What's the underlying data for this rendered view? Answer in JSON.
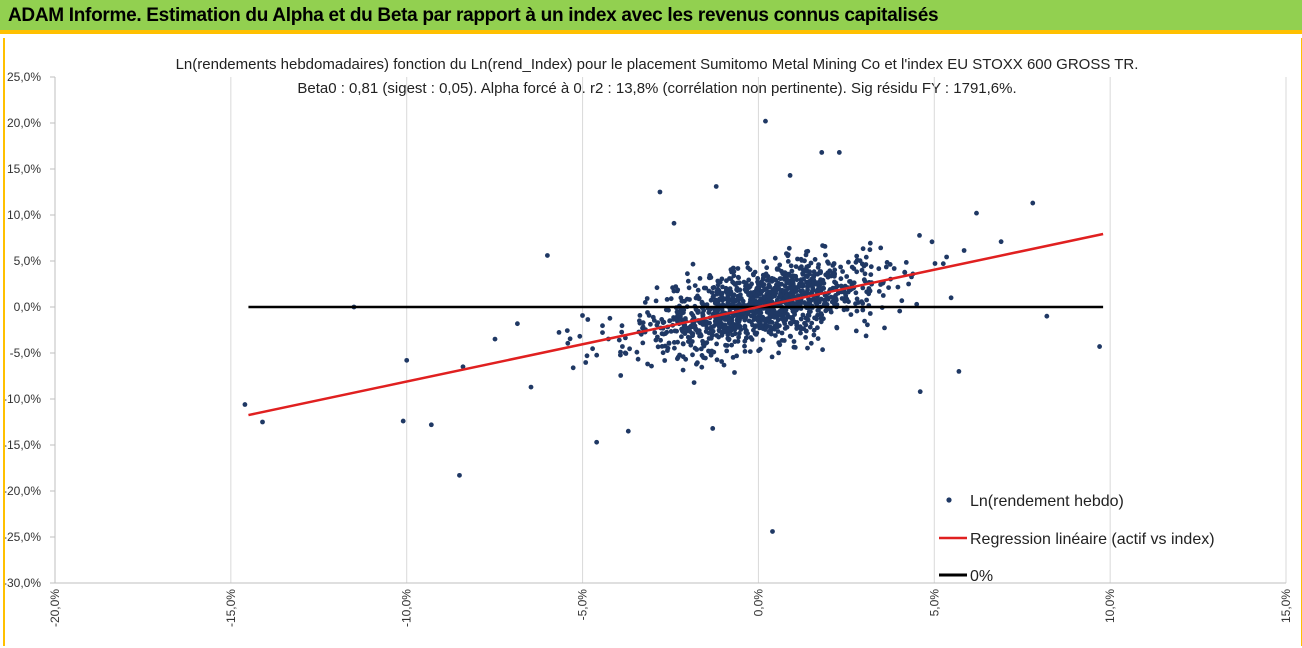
{
  "header": {
    "title": "ADAM Informe. Estimation du Alpha et du Beta par rapport à un index avec les revenus connus capitalisés"
  },
  "colors": {
    "header_bg": "#92d050",
    "header_border": "#ffc000",
    "points": "#1f3864",
    "regression": "#e02020",
    "zero_line": "#000000"
  },
  "chart_data": {
    "type": "scatter",
    "title_line1": "Ln(rendements hebdomadaires) fonction du Ln(rend_Index) pour le placement Sumitomo Metal Mining Co  et l'index EU STOXX 600 GROSS TR.",
    "title_line2": "Beta0 : 0,81 (sigest : 0,05). Alpha forcé à 0. r2 : 13,8% (corrélation non pertinente). Sig résidu FY : 1791,6%.",
    "xlim": [
      -0.2,
      0.15
    ],
    "ylim": [
      -0.3,
      0.25
    ],
    "x_ticks": [
      "-20,0%",
      "-15,0%",
      "-10,0%",
      "-5,0%",
      "0,0%",
      "5,0%",
      "10,0%",
      "15,0%"
    ],
    "y_ticks": [
      "25,0%",
      "20,0%",
      "15,0%",
      "10,0%",
      "5,0%",
      "0,0%",
      "-5,0%",
      "-10,0%",
      "-15,0%",
      "-20,0%",
      "-25,0%",
      "-30,0%"
    ],
    "grid": "vertical",
    "legend_position": "bottom-right",
    "legend": {
      "scatter": "Ln(rendement hebdo)",
      "regression": "Regression linéaire (actif vs index)",
      "zero": "0%"
    },
    "regression": {
      "beta": 0.81,
      "x_range": [
        -0.145,
        0.098
      ]
    },
    "zero_line": {
      "x_range": [
        -0.145,
        0.098
      ],
      "y": 0
    },
    "notable_points": [
      {
        "x": -0.146,
        "y": -0.106
      },
      {
        "x": -0.141,
        "y": -0.125
      },
      {
        "x": -0.115,
        "y": 0.0
      },
      {
        "x": -0.1,
        "y": -0.058
      },
      {
        "x": -0.101,
        "y": -0.124
      },
      {
        "x": -0.093,
        "y": -0.128
      },
      {
        "x": -0.084,
        "y": -0.065
      },
      {
        "x": -0.085,
        "y": -0.183
      },
      {
        "x": -0.06,
        "y": 0.056
      },
      {
        "x": 0.002,
        "y": 0.202
      },
      {
        "x": 0.004,
        "y": -0.244
      },
      {
        "x": 0.018,
        "y": 0.168
      },
      {
        "x": 0.023,
        "y": 0.168
      },
      {
        "x": -0.028,
        "y": 0.125
      },
      {
        "x": 0.078,
        "y": 0.113
      },
      {
        "x": 0.062,
        "y": 0.102
      },
      {
        "x": 0.069,
        "y": 0.071
      },
      {
        "x": 0.082,
        "y": -0.01
      },
      {
        "x": 0.097,
        "y": -0.043
      },
      {
        "x": 0.057,
        "y": -0.07
      },
      {
        "x": 0.046,
        "y": -0.092
      },
      {
        "x": -0.046,
        "y": -0.147
      },
      {
        "x": -0.037,
        "y": -0.135
      },
      {
        "x": -0.013,
        "y": -0.132
      },
      {
        "x": -0.024,
        "y": 0.091
      },
      {
        "x": -0.012,
        "y": 0.131
      },
      {
        "x": 0.009,
        "y": 0.143
      }
    ],
    "cluster": {
      "count": 1250,
      "x_center": 0.001,
      "x_spread": 0.015,
      "y_spread": 0.04,
      "seed": 7
    }
  }
}
